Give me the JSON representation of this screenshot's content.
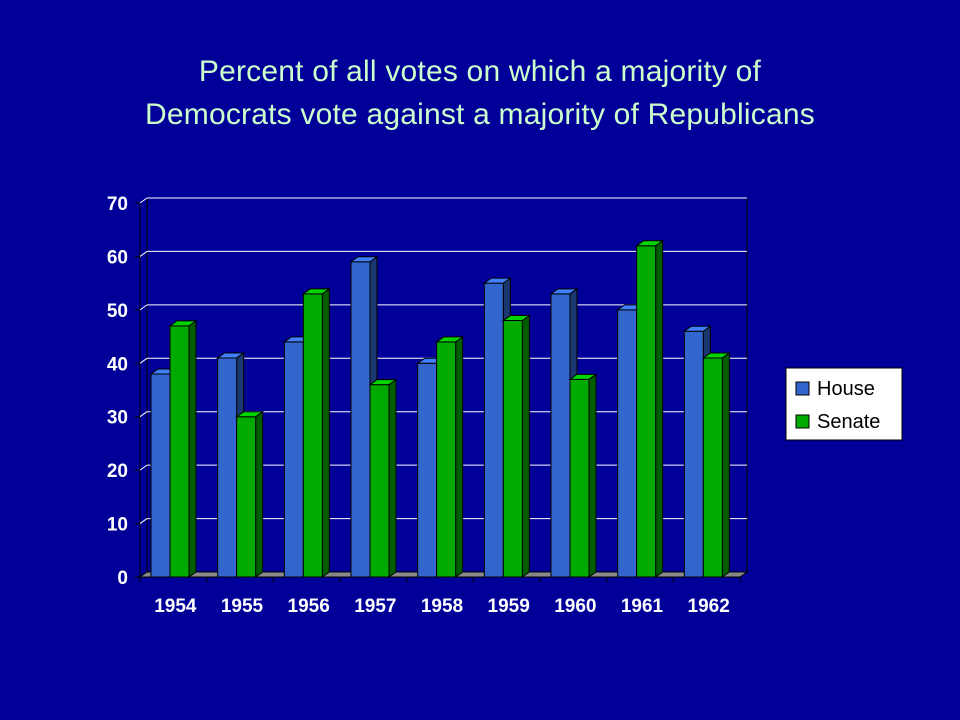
{
  "slide": {
    "title_line1": "Percent of all votes on which a majority of",
    "title_line2": "Democrats vote against a majority of Republicans"
  },
  "colors": {
    "background": "#000099",
    "title": "#ccffcc",
    "house": "#3366cc",
    "senate": "#00aa00",
    "gridline": "#ffffff",
    "tick_label": "#ffffff",
    "legend_box": "#ffffff"
  },
  "chart_data": {
    "type": "bar",
    "style": "3d-clustered",
    "title": "Percent of all votes on which a majority of Democrats vote against a majority of Republicans",
    "xlabel": "",
    "ylabel": "",
    "categories": [
      "1954",
      "1955",
      "1956",
      "1957",
      "1958",
      "1959",
      "1960",
      "1961",
      "1962"
    ],
    "series": [
      {
        "name": "House",
        "color": "#3366cc",
        "values": [
          38,
          41,
          44,
          59,
          40,
          55,
          53,
          50,
          46
        ]
      },
      {
        "name": "Senate",
        "color": "#00aa00",
        "values": [
          47,
          30,
          53,
          36,
          44,
          48,
          37,
          62,
          41
        ]
      }
    ],
    "ylim": [
      0,
      70
    ],
    "yticks": [
      0,
      10,
      20,
      30,
      40,
      50,
      60,
      70
    ],
    "grid": true,
    "legend_position": "right"
  }
}
